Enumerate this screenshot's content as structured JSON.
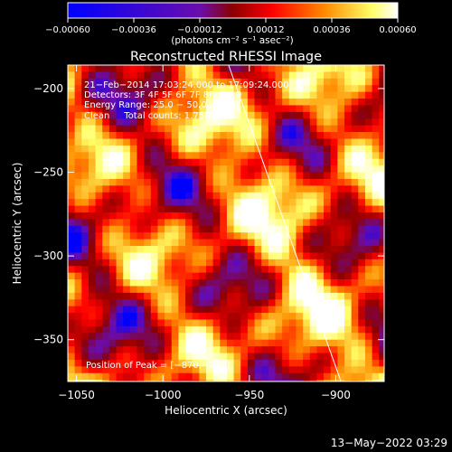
{
  "chart_data": {
    "type": "heatmap",
    "title": "Reconstructed RHESSI Image",
    "xlabel": "Heliocentric X (arcsec)",
    "ylabel": "Heliocentric Y (arcsec)",
    "xlim": [
      -1055,
      -872
    ],
    "ylim": [
      -375,
      -186
    ],
    "x_ticks": [
      -1050,
      -1000,
      -950,
      -900
    ],
    "x_tick_labels": [
      "−1050",
      "−1000",
      "−950",
      "−900"
    ],
    "y_ticks": [
      -200,
      -250,
      -300,
      -350
    ],
    "y_tick_labels": [
      "−200",
      "−250",
      "−300",
      "−350"
    ],
    "colorbar": {
      "range": [
        -0.0006,
        0.0006
      ],
      "ticks": [
        -0.0006,
        -0.00036,
        -0.00012,
        0.00012,
        0.00036,
        0.0006
      ],
      "tick_labels": [
        "−0.00060",
        "−0.00036",
        "−0.00012",
        "0.00012",
        "0.00036",
        "0.00060"
      ],
      "unit_label": "(photons cm⁻² s⁻¹ asec⁻²)",
      "colors": [
        "#0000ff",
        "#6a0dad",
        "#8b0000",
        "#ff0000",
        "#ff8c00",
        "#ffff66",
        "#ffffff"
      ]
    },
    "annotations": [
      "21−Feb−2014 17:03:24.000 to 17:09:24.000",
      "Detectors: 3F 4F 5F 6F 7F 8F, Att 0",
      "Energy Range: 25.0 − 50.0 keV",
      "Clean     Total counts: 1.75E+04"
    ],
    "peak_label": "Position of Peak = [−870,−220]",
    "peak": [
      -870,
      -220
    ],
    "limb_line": [
      [
        -962,
        -186
      ],
      [
        -897,
        -375
      ]
    ],
    "pixel_size_arcsec": 4
  },
  "footer": {
    "date_label": "13−May−2022 03:29"
  }
}
